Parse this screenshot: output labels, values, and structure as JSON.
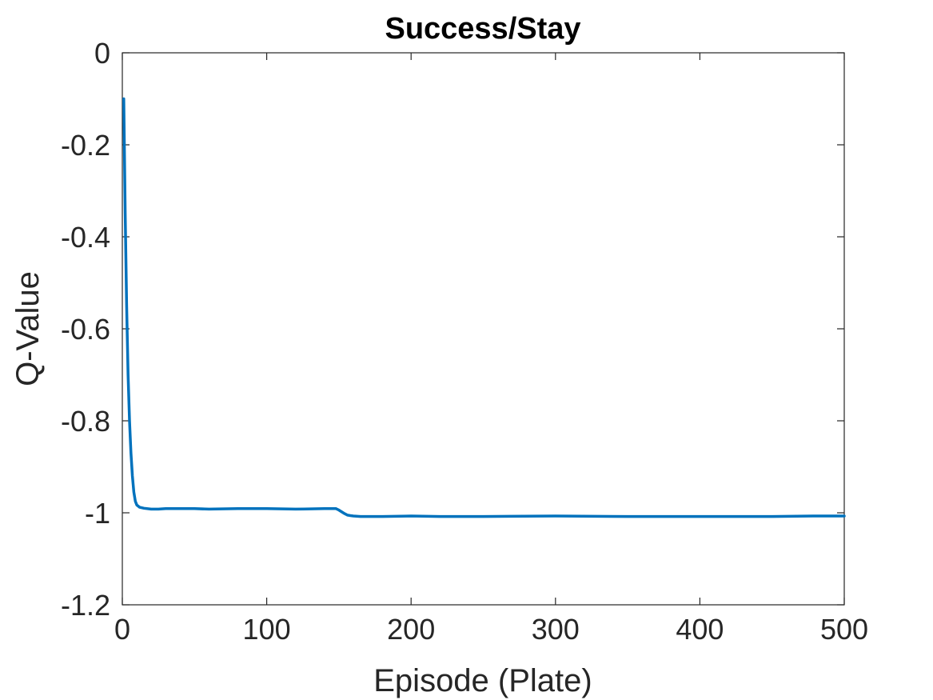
{
  "chart_data": {
    "type": "line",
    "title": "Success/Stay",
    "xlabel": "Episode (Plate)",
    "ylabel": "Q-Value",
    "xlim": [
      0,
      500
    ],
    "ylim": [
      -1.2,
      0
    ],
    "xticks": [
      0,
      100,
      200,
      300,
      400,
      500
    ],
    "xtick_labels": [
      "0",
      "100",
      "200",
      "300",
      "400",
      "500"
    ],
    "yticks": [
      0,
      -0.2,
      -0.4,
      -0.6,
      -0.8,
      -1,
      -1.2
    ],
    "ytick_labels": [
      "0",
      "-0.2",
      "-0.4",
      "-0.6",
      "-0.8",
      "-1",
      "-1.2"
    ],
    "grid": false,
    "box": true,
    "series": [
      {
        "color": "#0072BD",
        "x": [
          1,
          2,
          3,
          4,
          5,
          6,
          7,
          8,
          9,
          10,
          12,
          15,
          20,
          25,
          30,
          40,
          50,
          60,
          80,
          100,
          120,
          140,
          148,
          150,
          152,
          154,
          156,
          158,
          160,
          165,
          170,
          180,
          200,
          220,
          250,
          300,
          350,
          400,
          450,
          480,
          500
        ],
        "y": [
          -0.1,
          -0.35,
          -0.55,
          -0.7,
          -0.8,
          -0.87,
          -0.92,
          -0.955,
          -0.975,
          -0.983,
          -0.988,
          -0.99,
          -0.992,
          -0.992,
          -0.991,
          -0.991,
          -0.991,
          -0.992,
          -0.991,
          -0.991,
          -0.992,
          -0.991,
          -0.991,
          -0.994,
          -0.998,
          -1.002,
          -1.005,
          -1.006,
          -1.007,
          -1.008,
          -1.008,
          -1.008,
          -1.007,
          -1.008,
          -1.008,
          -1.007,
          -1.008,
          -1.008,
          -1.008,
          -1.007,
          -1.007
        ]
      }
    ]
  }
}
